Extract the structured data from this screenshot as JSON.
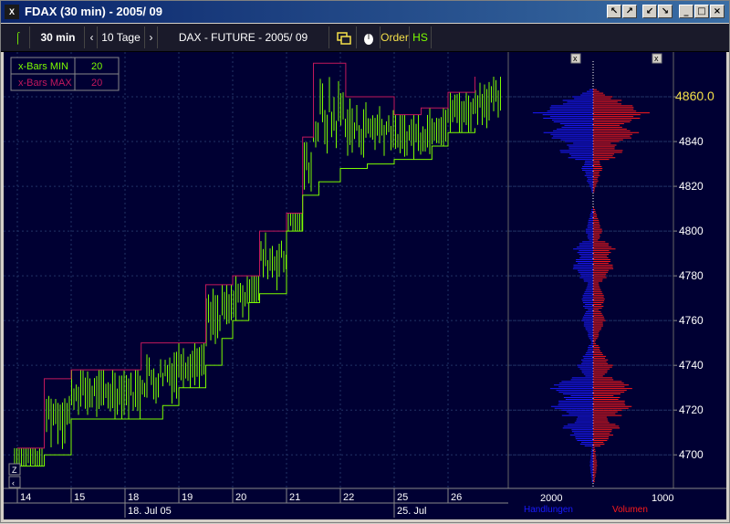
{
  "window": {
    "title": "FDAX  (30 min) - 2005/ 09",
    "logo_text": "X",
    "controls": [
      "↖",
      "↗",
      "↙",
      "↘",
      "_",
      "□",
      "×"
    ]
  },
  "toolbar": {
    "icon_label": "⌠",
    "interval": "30 min",
    "prev": "‹",
    "range": "10 Tage",
    "next": "›",
    "instrument": "DAX - FUTURE - 2005/ 09",
    "order_label": "Order",
    "hs_label": "HS"
  },
  "legend": {
    "items": [
      {
        "label": "x-Bars MIN",
        "value": "20",
        "color": "#7cfc00"
      },
      {
        "label": "x-Bars MAX",
        "value": "20",
        "color": "#c2185b"
      }
    ]
  },
  "colors": {
    "background": "#000033",
    "price_bars": "#7cfc00",
    "min_line": "#7cfc00",
    "max_line": "#c2185b",
    "handlungen": "#1a1aff",
    "volumen": "#ff1a1a",
    "current_price": "#f4e04a",
    "grid": "#223366"
  },
  "axis": {
    "price_labels": [
      "4860.0",
      "4840",
      "4820",
      "4800",
      "4780",
      "4760",
      "4740",
      "4720",
      "4700"
    ],
    "current_price": "4860.0",
    "x_day_labels": [
      "14",
      "15",
      "18",
      "19",
      "20",
      "21",
      "22",
      "25",
      "26"
    ],
    "week_labels": [
      "18. Jul 05",
      "25. Jul"
    ]
  },
  "profile": {
    "scale_left": "2000",
    "scale_right": "1000",
    "label_left": "Handlungen",
    "label_right": "Volumen",
    "close_labels": [
      "x",
      "x"
    ]
  },
  "nav": {
    "zoom": "Z",
    "left": "‹"
  },
  "chart_data": {
    "type": "candlestick-with-profile",
    "title": "DAX - FUTURE - 2005/ 09",
    "xlabel": "",
    "ylabel": "",
    "x_categories": [
      "14",
      "15",
      "18",
      "19",
      "20",
      "21",
      "22",
      "25",
      "26"
    ],
    "ylim": [
      4685,
      4880
    ],
    "y_ticks": [
      4700,
      4720,
      4740,
      4760,
      4780,
      4800,
      4820,
      4840,
      4860
    ],
    "series": [
      {
        "name": "x-Bars MIN",
        "points": [
          [
            0,
            4695
          ],
          [
            0.5,
            4700
          ],
          [
            1,
            4716
          ],
          [
            2,
            4716
          ],
          [
            2.7,
            4722
          ],
          [
            3,
            4730
          ],
          [
            3.5,
            4740
          ],
          [
            3.8,
            4752
          ],
          [
            4,
            4760
          ],
          [
            4.3,
            4768
          ],
          [
            4.5,
            4772
          ],
          [
            5,
            4800
          ],
          [
            5.3,
            4816
          ],
          [
            5.6,
            4822
          ],
          [
            6,
            4828
          ],
          [
            6.5,
            4830
          ],
          [
            7,
            4832
          ],
          [
            7.7,
            4838
          ],
          [
            8,
            4844
          ],
          [
            8.5,
            4846
          ]
        ]
      },
      {
        "name": "x-Bars MAX",
        "points": [
          [
            0,
            4703
          ],
          [
            0.5,
            4734
          ],
          [
            1,
            4738
          ],
          [
            2,
            4738
          ],
          [
            2.3,
            4750
          ],
          [
            3,
            4750
          ],
          [
            3.5,
            4776
          ],
          [
            4,
            4780
          ],
          [
            4.5,
            4800
          ],
          [
            5,
            4808
          ],
          [
            5.3,
            4842
          ],
          [
            5.5,
            4875
          ],
          [
            6,
            4875
          ],
          [
            6.1,
            4860
          ],
          [
            7,
            4852
          ],
          [
            7.5,
            4855
          ],
          [
            8,
            4862
          ],
          [
            8.5,
            4869
          ]
        ]
      }
    ],
    "volume_profile": [
      {
        "price": 4852,
        "handlungen": 1600,
        "volumen": 750
      },
      {
        "price": 4844,
        "handlungen": 1300,
        "volumen": 600
      },
      {
        "price": 4836,
        "handlungen": 900,
        "volumen": 400
      },
      {
        "price": 4828,
        "handlungen": 300,
        "volumen": 120
      },
      {
        "price": 4800,
        "handlungen": 200,
        "volumen": 120
      },
      {
        "price": 4792,
        "handlungen": 500,
        "volumen": 280
      },
      {
        "price": 4784,
        "handlungen": 600,
        "volumen": 300
      },
      {
        "price": 4770,
        "handlungen": 350,
        "volumen": 180
      },
      {
        "price": 4760,
        "handlungen": 300,
        "volumen": 160
      },
      {
        "price": 4740,
        "handlungen": 400,
        "volumen": 250
      },
      {
        "price": 4730,
        "handlungen": 1100,
        "volumen": 500
      },
      {
        "price": 4722,
        "handlungen": 1200,
        "volumen": 550
      },
      {
        "price": 4712,
        "handlungen": 800,
        "volumen": 350
      },
      {
        "price": 4696,
        "handlungen": 100,
        "volumen": 60
      }
    ]
  }
}
